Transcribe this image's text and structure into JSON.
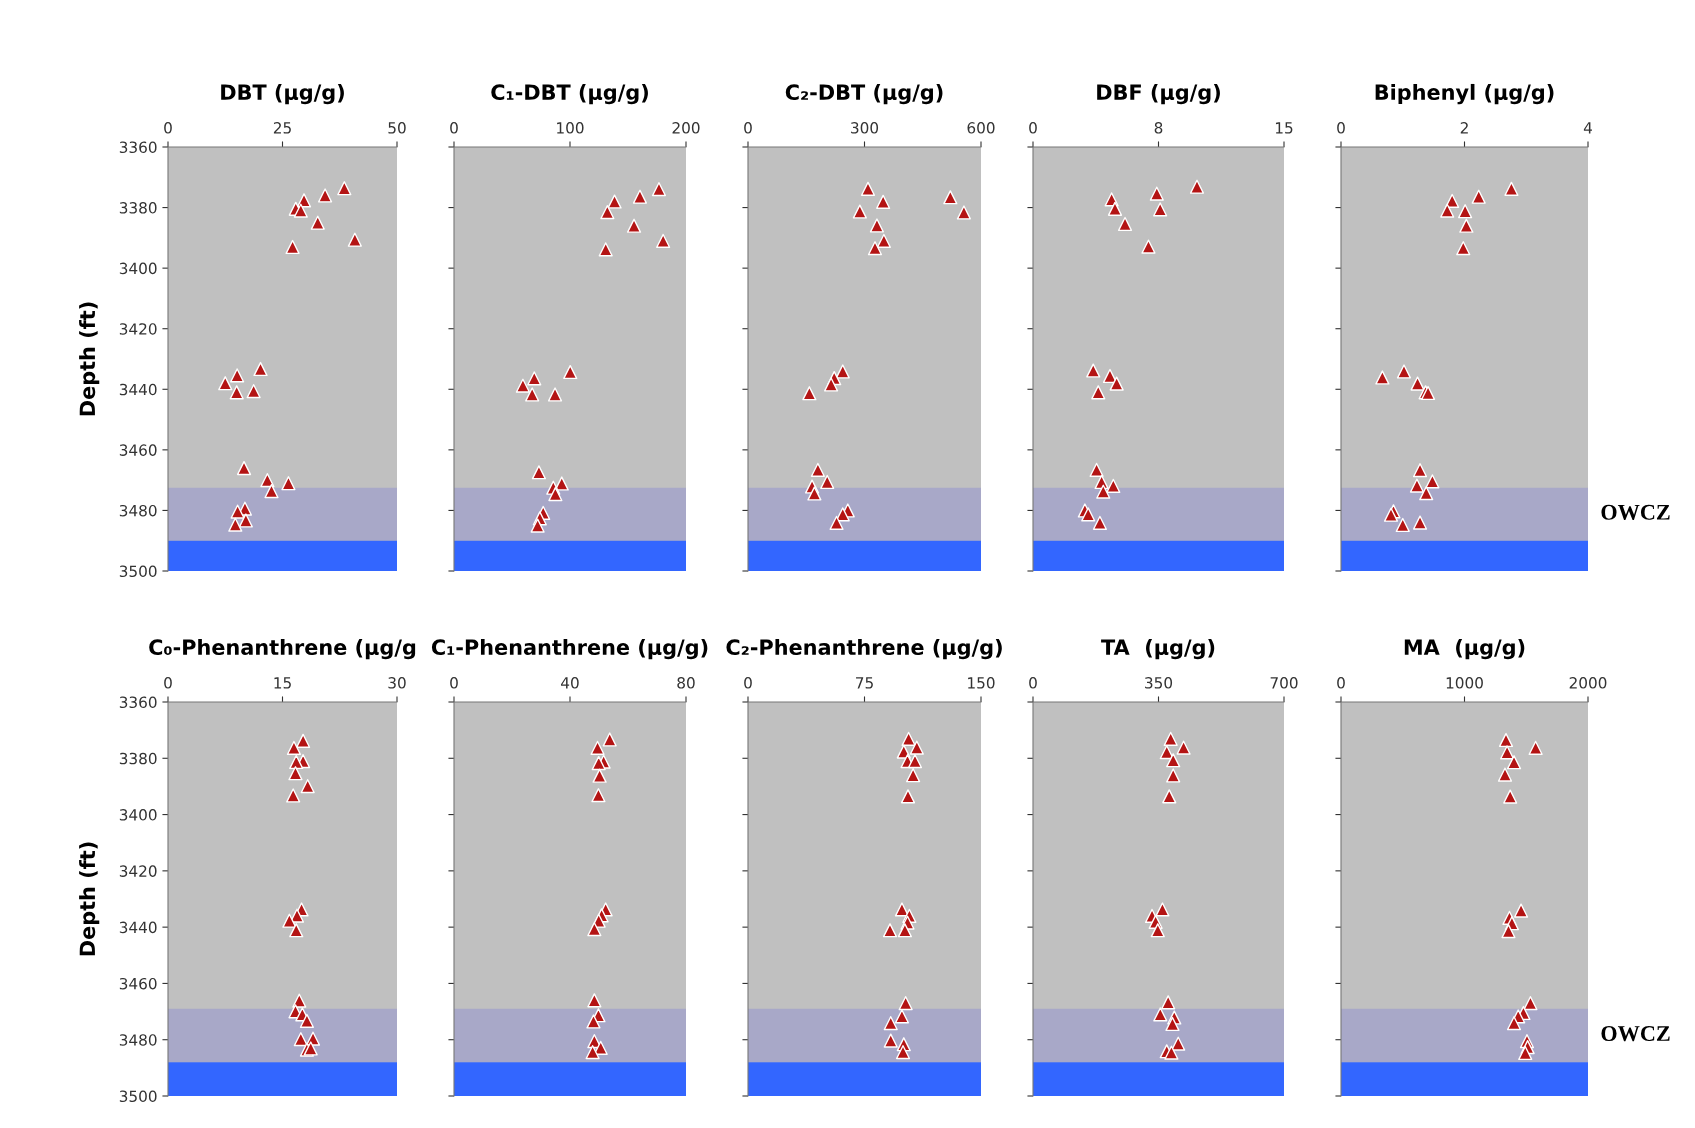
{
  "chart_data": [
    {
      "type": "scatter",
      "title": "DBT (µg/g)",
      "ylabel": "Depth (ft)",
      "marker": "triangle",
      "xlim": [
        0,
        50
      ],
      "xticks": [
        0,
        25,
        50
      ],
      "ylim": [
        3500,
        3360
      ],
      "yticks": [
        3360,
        3380,
        3400,
        3420,
        3440,
        3460,
        3480,
        3500
      ],
      "series": [
        {
          "color": "#b41414",
          "x": [
            38.5,
            34.3,
            29.7,
            27.9,
            29.0,
            32.7,
            40.8,
            27.2,
            20.2,
            15.1,
            12.5,
            15.0,
            18.7,
            16.6,
            21.7,
            26.3,
            22.6,
            16.8,
            15.2,
            17.0,
            14.7
          ],
          "values": [
            3373.6,
            3376,
            3377.6,
            3380.4,
            3381,
            3385,
            3390.6,
            3393,
            3433.3,
            3435.4,
            3438,
            3441,
            3440.6,
            3466,
            3470,
            3471,
            3473.6,
            3479.4,
            3480.4,
            3483.3,
            3484.7
          ]
        }
      ],
      "bands": [
        {
          "axis": "y",
          "from": 3472.5,
          "to": 3490,
          "color": "#a8a8c8"
        },
        {
          "axis": "y",
          "from": 3490,
          "to": 3500,
          "color": "#3366ff"
        }
      ]
    },
    {
      "type": "scatter",
      "title": "C₁-DBT (µg/g)",
      "marker": "triangle",
      "tick_labels": "x",
      "xlim": [
        0,
        200
      ],
      "xticks": [
        0,
        100,
        200
      ],
      "ylim": [
        3500,
        3360
      ],
      "yticks": [
        3360,
        3380,
        3400,
        3420,
        3440,
        3460,
        3480,
        3500
      ],
      "series": [
        {
          "color": "#b41414",
          "x": [
            176.7,
            160.3,
            138.4,
            132.2,
            155.2,
            180.3,
            130.8,
            100.2,
            69.2,
            59.4,
            67.4,
            87.1,
            73.2,
            92.9,
            85.6,
            87.4,
            76.9,
            74,
            72.1
          ],
          "values": [
            3373.9,
            3376.4,
            3378,
            3381.5,
            3386,
            3391,
            3393.8,
            3434.3,
            3436.4,
            3438.8,
            3441.7,
            3441.7,
            3467.4,
            3471.1,
            3472.5,
            3474.6,
            3480.8,
            3482.6,
            3485
          ]
        }
      ],
      "bands": [
        {
          "axis": "y",
          "from": 3472.5,
          "to": 3490,
          "color": "#a8a8c8"
        },
        {
          "axis": "y",
          "from": 3490,
          "to": 3500,
          "color": "#3366ff"
        }
      ]
    },
    {
      "type": "scatter",
      "title": "C₂-DBT (µg/g)",
      "marker": "triangle",
      "tick_labels": "x",
      "xlim": [
        0,
        600
      ],
      "xticks": [
        0,
        300,
        600
      ],
      "ylim": [
        3500,
        3360
      ],
      "yticks": [
        3360,
        3380,
        3400,
        3420,
        3440,
        3460,
        3480,
        3500
      ],
      "series": [
        {
          "color": "#b41414",
          "x": [
            309,
            348,
            288,
            521,
            556,
            332,
            350,
            327,
            244,
            222,
            214,
            158,
            180,
            204,
            165,
            171,
            257,
            244,
            228
          ],
          "values": [
            3373.8,
            3378.1,
            3381.3,
            3376.6,
            3381.6,
            3385.9,
            3391,
            3393.4,
            3434.1,
            3436.3,
            3438.4,
            3441.3,
            3466.6,
            3470.6,
            3472.1,
            3474.4,
            3480,
            3481.3,
            3484.1
          ]
        }
      ],
      "bands": [
        {
          "axis": "y",
          "from": 3472.5,
          "to": 3490,
          "color": "#a8a8c8"
        },
        {
          "axis": "y",
          "from": 3490,
          "to": 3500,
          "color": "#3366ff"
        }
      ]
    },
    {
      "type": "scatter",
      "title": "DBF (µg/g)",
      "marker": "triangle",
      "tick_labels": "x",
      "xlim": [
        0,
        15
      ],
      "xticks": [
        0,
        {
          "value": 7.5,
          "label": "8"
        },
        15
      ],
      "ylim": [
        3500,
        3360
      ],
      "yticks": [
        3360,
        3380,
        3400,
        3420,
        3440,
        3460,
        3480,
        3500
      ],
      "series": [
        {
          "color": "#b41414",
          "x": [
            9.8,
            7.4,
            4.7,
            4.9,
            7.6,
            5.5,
            6.9,
            3.6,
            4.6,
            5.0,
            3.9,
            3.8,
            4.1,
            4.8,
            4.2,
            3.1,
            3.3,
            4.0
          ],
          "values": [
            3373.1,
            3375.4,
            3377.3,
            3380.4,
            3380.6,
            3385.4,
            3392.9,
            3433.8,
            3435.6,
            3438.1,
            3441,
            3466.6,
            3470.6,
            3471.9,
            3473.8,
            3480,
            3481.3,
            3484.1
          ]
        }
      ],
      "bands": [
        {
          "axis": "y",
          "from": 3472.5,
          "to": 3490,
          "color": "#a8a8c8"
        },
        {
          "axis": "y",
          "from": 3490,
          "to": 3500,
          "color": "#3366ff"
        }
      ]
    },
    {
      "type": "scatter",
      "title": "Biphenyl (µg/g)",
      "marker": "triangle",
      "tick_labels": "x",
      "xlim": [
        0,
        4
      ],
      "xticks": [
        0,
        2,
        4
      ],
      "ylim": [
        3500,
        3360
      ],
      "yticks": [
        3360,
        3380,
        3400,
        3420,
        3440,
        3460,
        3480,
        3500
      ],
      "series": [
        {
          "color": "#b41414",
          "x": [
            2.76,
            2.23,
            1.8,
            1.72,
            2.01,
            2.03,
            1.98,
            1.02,
            0.67,
            1.24,
            1.37,
            1.41,
            1.28,
            1.48,
            1.23,
            1.38,
            0.85,
            0.81,
            1.0,
            1.28
          ],
          "values": [
            3373.8,
            3376.4,
            3377.8,
            3381,
            3381.2,
            3386,
            3393.4,
            3434.1,
            3436.1,
            3438.1,
            3441,
            3441.2,
            3466.7,
            3470.4,
            3471.8,
            3474.3,
            3480.3,
            3481.4,
            3484.8,
            3484
          ]
        }
      ],
      "bands": [
        {
          "axis": "y",
          "from": 3472.5,
          "to": 3490,
          "color": "#a8a8c8",
          "label": "OWCZ"
        },
        {
          "axis": "y",
          "from": 3490,
          "to": 3500,
          "color": "#3366ff"
        }
      ]
    },
    {
      "type": "scatter",
      "title": "C₀-Phenanthrene (µg/g",
      "ylabel": "Depth (ft)",
      "marker": "triangle",
      "xlim": [
        0,
        30
      ],
      "xticks": [
        0,
        15,
        30
      ],
      "ylim": [
        3500,
        3360
      ],
      "yticks": [
        3360,
        3380,
        3400,
        3420,
        3440,
        3460,
        3480,
        3500
      ],
      "series": [
        {
          "color": "#b41414",
          "x": [
            17.7,
            16.5,
            17.7,
            16.8,
            16.7,
            18.3,
            16.4,
            17.5,
            16.9,
            15.9,
            16.8,
            17.2,
            16.7,
            17.6,
            18.2,
            17.4,
            19.0,
            18.2,
            18.7
          ],
          "values": [
            3373.8,
            3376.3,
            3381,
            3381.3,
            3385.3,
            3389.9,
            3393.2,
            3433.7,
            3435.9,
            3437.7,
            3441.1,
            3466.1,
            3469.9,
            3471,
            3473.3,
            3479.8,
            3479.6,
            3483.5,
            3483.1
          ]
        }
      ],
      "bands": [
        {
          "axis": "y",
          "from": 3469,
          "to": 3488,
          "color": "#a8a8c8"
        },
        {
          "axis": "y",
          "from": 3488,
          "to": 3500,
          "color": "#3366ff"
        }
      ]
    },
    {
      "type": "scatter",
      "title": "C₁-Phenanthrene (µg/g)",
      "marker": "triangle",
      "tick_labels": "x",
      "xlim": [
        0,
        80
      ],
      "xticks": [
        0,
        40,
        80
      ],
      "ylim": [
        3500,
        3360
      ],
      "yticks": [
        3360,
        3380,
        3400,
        3420,
        3440,
        3460,
        3480,
        3500
      ],
      "series": [
        {
          "color": "#b41414",
          "x": [
            53.7,
            49.5,
            51.6,
            49.9,
            50.2,
            49.8,
            52.3,
            50.9,
            49.9,
            48.4,
            48.4,
            49.8,
            48.1,
            48.4,
            50.6,
            47.8
          ],
          "values": [
            3373.3,
            3376.3,
            3381.2,
            3381.7,
            3386.2,
            3393.1,
            3433.7,
            3435.8,
            3437.7,
            3440.7,
            3466,
            3471.3,
            3473.5,
            3480.5,
            3482.9,
            3484.4
          ]
        }
      ],
      "bands": [
        {
          "axis": "y",
          "from": 3469,
          "to": 3488,
          "color": "#a8a8c8"
        },
        {
          "axis": "y",
          "from": 3488,
          "to": 3500,
          "color": "#3366ff"
        }
      ]
    },
    {
      "type": "scatter",
      "title": "C₂-Phenanthrene (µg/g)",
      "marker": "triangle",
      "tick_labels": "x",
      "xlim": [
        0,
        150
      ],
      "xticks": [
        0,
        75,
        150
      ],
      "ylim": [
        3500,
        3360
      ],
      "yticks": [
        3360,
        3380,
        3400,
        3420,
        3440,
        3460,
        3480,
        3500
      ],
      "series": [
        {
          "color": "#b41414",
          "x": [
            103.4,
            108.7,
            100.3,
            102.7,
            107.5,
            106.3,
            103,
            99.1,
            103.9,
            102.7,
            91.4,
            101,
            101.5,
            99.1,
            91.9,
            91.9,
            100.3,
            99.8
          ],
          "values": [
            3373.1,
            3376.2,
            3377.6,
            3381,
            3381,
            3386,
            3393.5,
            3433.7,
            3436,
            3438.4,
            3441.1,
            3441.1,
            3467,
            3471.7,
            3474.1,
            3480.3,
            3481.6,
            3484.4
          ]
        }
      ],
      "bands": [
        {
          "axis": "y",
          "from": 3469,
          "to": 3488,
          "color": "#a8a8c8"
        },
        {
          "axis": "y",
          "from": 3488,
          "to": 3500,
          "color": "#3366ff"
        }
      ]
    },
    {
      "type": "scatter",
      "title": "TA  (µg/g)",
      "marker": "triangle",
      "tick_labels": "x",
      "xlim": [
        0,
        700
      ],
      "xticks": [
        0,
        350,
        700
      ],
      "ylim": [
        3500,
        3360
      ],
      "yticks": [
        3360,
        3380,
        3400,
        3420,
        3440,
        3460,
        3480,
        3500
      ],
      "series": [
        {
          "color": "#b41414",
          "x": [
            384,
            420,
            373,
            391,
            391,
            380,
            361,
            332,
            342,
            348,
            377,
            355,
            394,
            389,
            405,
            373,
            386
          ],
          "values": [
            3373.1,
            3376.2,
            3377.8,
            3380.7,
            3386.1,
            3393.5,
            3433.7,
            3436,
            3438.1,
            3441.1,
            3466.7,
            3471,
            3472.1,
            3474.4,
            3481.4,
            3484.1,
            3484.6
          ]
        }
      ],
      "bands": [
        {
          "axis": "y",
          "from": 3469,
          "to": 3488,
          "color": "#a8a8c8"
        },
        {
          "axis": "y",
          "from": 3488,
          "to": 3500,
          "color": "#3366ff"
        }
      ]
    },
    {
      "type": "scatter",
      "title": "MA  (µg/g)",
      "marker": "triangle",
      "tick_labels": "x",
      "xlim": [
        0,
        2000
      ],
      "xticks": [
        0,
        1000,
        2000
      ],
      "ylim": [
        3500,
        3360
      ],
      "yticks": [
        3360,
        3380,
        3400,
        3420,
        3440,
        3460,
        3480,
        3500
      ],
      "series": [
        {
          "color": "#b41414",
          "x": [
            1336,
            1576,
            1345,
            1401,
            1328,
            1370,
            1458,
            1364,
            1384,
            1356,
            1534,
            1477,
            1435,
            1401,
            1506,
            1511,
            1492
          ],
          "values": [
            3373.5,
            3376.3,
            3377.9,
            3381.4,
            3385.8,
            3393.6,
            3434.1,
            3436.7,
            3438.6,
            3441.4,
            3467,
            3470.5,
            3471.7,
            3474.1,
            3480.5,
            3482.6,
            3484.7
          ]
        }
      ],
      "bands": [
        {
          "axis": "y",
          "from": 3469,
          "to": 3488,
          "color": "#a8a8c8",
          "label": "OWCZ"
        },
        {
          "axis": "y",
          "from": 3488,
          "to": 3500,
          "color": "#3366ff"
        }
      ]
    }
  ]
}
